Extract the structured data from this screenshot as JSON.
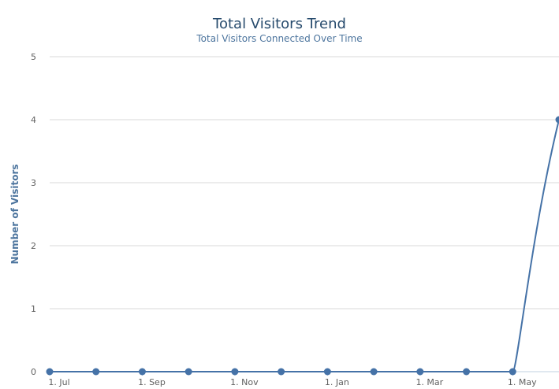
{
  "chart_data": {
    "type": "line",
    "title": "Total Visitors Trend",
    "subtitle": "Total Visitors Connected Over Time",
    "xlabel": "",
    "ylabel": "Number of Visitors",
    "x_tick_labels": [
      "1. Jul",
      "1. Sep",
      "1. Nov",
      "1. Jan",
      "1. Mar",
      "1. May"
    ],
    "y_ticks": [
      0,
      1,
      2,
      3,
      4,
      5
    ],
    "ylim": [
      0,
      5
    ],
    "grid": true,
    "legend": "none",
    "series_color": "#4572a7",
    "series": [
      {
        "x": [
          "1. Jul",
          "",
          "1. Sep",
          "",
          "1. Nov",
          "",
          "1. Jan",
          "",
          "1. Mar",
          "",
          "1. May",
          ""
        ],
        "values": [
          0,
          0,
          0,
          0,
          0,
          0,
          0,
          0,
          0,
          0,
          0,
          4
        ]
      }
    ]
  }
}
